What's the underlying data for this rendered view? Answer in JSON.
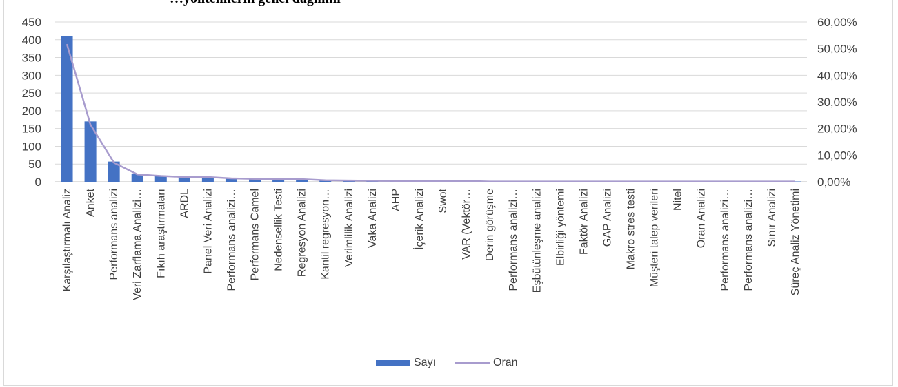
{
  "chart_data": {
    "type": "bar",
    "title": "…yöntemlerin genel dağılımı",
    "categories": [
      "Karşılaştırmalı Analiz",
      "Anket",
      "Performans analizi",
      "Veri Zarflama Analizi…",
      "Fıkıh araştırmaları",
      "ARDL",
      "Panel Veri Analizi",
      "Performans analizi…",
      "Performans Camel",
      "Nedensellik Testi",
      "Regresyon Analizi",
      "Kantil regresyon…",
      "Verimlilik Analizi",
      "Vaka Analizi",
      "AHP",
      "İçerik Analizi",
      "Swot",
      "VAR (Vektör…",
      "Derin görüşme",
      "Performans analizi…",
      "Eşbütünleşme analizi",
      "Elbirliği yöntemi",
      "Faktör Analizi",
      "GAP Analizi",
      "Makro stres testi",
      "Müşteri talep verileri",
      "Nitel",
      "Oran Analizi",
      "Performans analizi…",
      "Performans analizi…",
      "Sınır Analizi",
      "Süreç Analiz Yönetimi"
    ],
    "series": [
      {
        "name": "Sayı",
        "type": "bar",
        "axis": "left",
        "color": "#4472c4",
        "values": [
          410,
          170,
          57,
          22,
          17,
          14,
          14,
          10,
          9,
          8,
          8,
          5,
          4,
          3,
          2,
          2,
          2,
          2,
          1,
          1,
          1,
          1,
          1,
          1,
          1,
          1,
          1,
          1,
          1,
          1,
          1,
          1
        ]
      },
      {
        "name": "Oran",
        "type": "line",
        "axis": "right",
        "color": "#a89cce",
        "values": [
          0.517,
          0.215,
          0.072,
          0.028,
          0.022,
          0.018,
          0.018,
          0.013,
          0.011,
          0.01,
          0.01,
          0.006,
          0.005,
          0.004,
          0.003,
          0.003,
          0.003,
          0.003,
          0.001,
          0.001,
          0.001,
          0.001,
          0.001,
          0.001,
          0.001,
          0.001,
          0.001,
          0.001,
          0.001,
          0.001,
          0.001,
          0.001
        ]
      }
    ],
    "ylim": [
      0,
      450
    ],
    "y_ticks": [
      "0",
      "50",
      "100",
      "150",
      "200",
      "250",
      "300",
      "350",
      "400",
      "450"
    ],
    "y2lim": [
      0,
      0.6
    ],
    "y2_ticks": [
      "0,00%",
      "10,00%",
      "20,00%",
      "30,00%",
      "40,00%",
      "50,00%",
      "60,00%"
    ],
    "xlabel": "",
    "ylabel": "",
    "grid": true,
    "legend_position": "bottom"
  }
}
